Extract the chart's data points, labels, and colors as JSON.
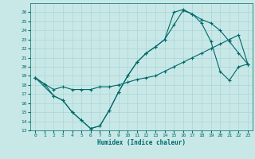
{
  "title": "",
  "xlabel": "Humidex (Indice chaleur)",
  "background_color": "#c8e8e8",
  "grid_color": "#aad4d4",
  "line_color": "#006868",
  "xlim": [
    -0.5,
    23.5
  ],
  "ylim": [
    13,
    27
  ],
  "yticks": [
    13,
    14,
    15,
    16,
    17,
    18,
    19,
    20,
    21,
    22,
    23,
    24,
    25,
    26
  ],
  "xticks": [
    0,
    1,
    2,
    3,
    4,
    5,
    6,
    7,
    8,
    9,
    10,
    11,
    12,
    13,
    14,
    15,
    16,
    17,
    18,
    19,
    20,
    21,
    22,
    23
  ],
  "line1_x": [
    0,
    1,
    2,
    3,
    4,
    5,
    6,
    7,
    8,
    9,
    10,
    11,
    12,
    13,
    14,
    15,
    16,
    17,
    18,
    19,
    20,
    21,
    22,
    23
  ],
  "line1_y": [
    18.8,
    18.1,
    16.8,
    16.3,
    15.0,
    14.1,
    13.2,
    13.5,
    15.2,
    17.2,
    19.0,
    20.5,
    21.5,
    22.2,
    23.0,
    24.6,
    26.2,
    25.8,
    25.2,
    24.8,
    24.0,
    22.8,
    21.5,
    20.3
  ],
  "line2_x": [
    0,
    1,
    2,
    3,
    4,
    5,
    6,
    7,
    8,
    9,
    10,
    11,
    12,
    13,
    14,
    15,
    16,
    17,
    18,
    19,
    20,
    21,
    22,
    23
  ],
  "line2_y": [
    18.8,
    18.1,
    17.5,
    17.8,
    17.5,
    17.5,
    17.5,
    17.8,
    17.8,
    18.0,
    18.3,
    18.6,
    18.8,
    19.0,
    19.5,
    20.0,
    20.5,
    21.0,
    21.5,
    22.0,
    22.5,
    23.0,
    23.5,
    20.3
  ],
  "line3_x": [
    0,
    2,
    3,
    4,
    5,
    6,
    7,
    8,
    9,
    10,
    11,
    12,
    13,
    14,
    15,
    16,
    17,
    18,
    19,
    20,
    21,
    22,
    23
  ],
  "line3_y": [
    18.8,
    16.8,
    16.3,
    15.0,
    14.1,
    13.2,
    13.5,
    15.2,
    17.2,
    19.0,
    20.5,
    21.5,
    22.2,
    23.0,
    26.0,
    26.3,
    25.8,
    24.8,
    22.8,
    19.5,
    18.5,
    20.0,
    20.3
  ]
}
